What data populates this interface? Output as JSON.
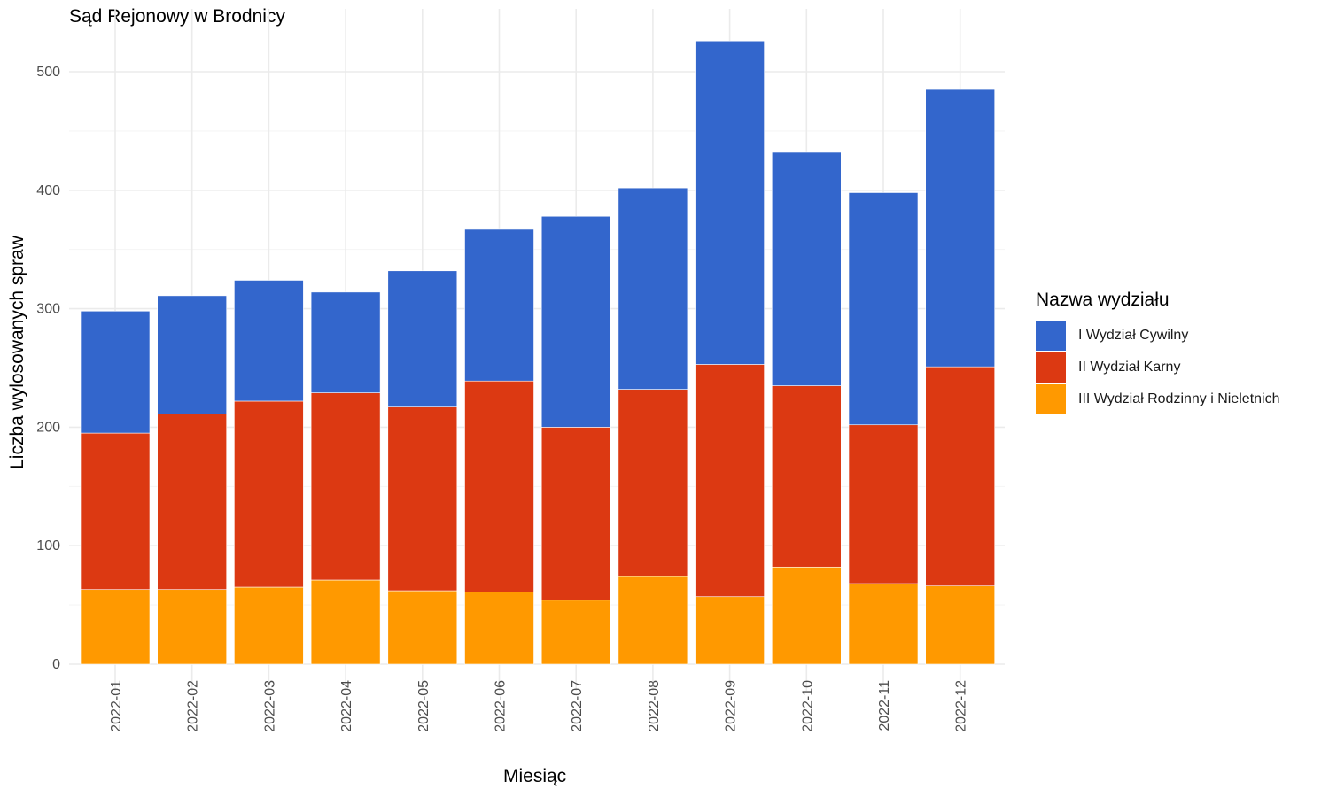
{
  "chart_data": {
    "type": "bar",
    "stacked": true,
    "title": "Sąd Rejonowy w Brodnicy",
    "xlabel": "Miesiąc",
    "ylabel": "Liczba wylosowanych spraw",
    "ylim": [
      0,
      540
    ],
    "y_ticks": [
      0,
      100,
      200,
      300,
      400,
      500
    ],
    "grid": true,
    "legend_title": "Nazwa wydziału",
    "legend_position": "right",
    "categories": [
      "2022-01",
      "2022-02",
      "2022-03",
      "2022-04",
      "2022-05",
      "2022-06",
      "2022-07",
      "2022-08",
      "2022-09",
      "2022-10",
      "2022-11",
      "2022-12"
    ],
    "series": [
      {
        "name": "III Wydział Rodzinny i Nieletnich",
        "color": "#FF9900",
        "values": [
          63,
          63,
          65,
          71,
          62,
          61,
          54,
          74,
          57,
          82,
          68,
          66
        ]
      },
      {
        "name": "II Wydział Karny",
        "color": "#DC3912",
        "values": [
          132,
          148,
          157,
          158,
          155,
          178,
          146,
          158,
          196,
          153,
          134,
          185
        ]
      },
      {
        "name": "I Wydział Cywilny",
        "color": "#3366CC",
        "values": [
          103,
          100,
          102,
          85,
          115,
          128,
          178,
          170,
          273,
          197,
          196,
          234
        ]
      }
    ],
    "legend_order": [
      "I Wydział Cywilny",
      "II Wydział Karny",
      "III Wydział Rodzinny i Nieletnich"
    ]
  }
}
